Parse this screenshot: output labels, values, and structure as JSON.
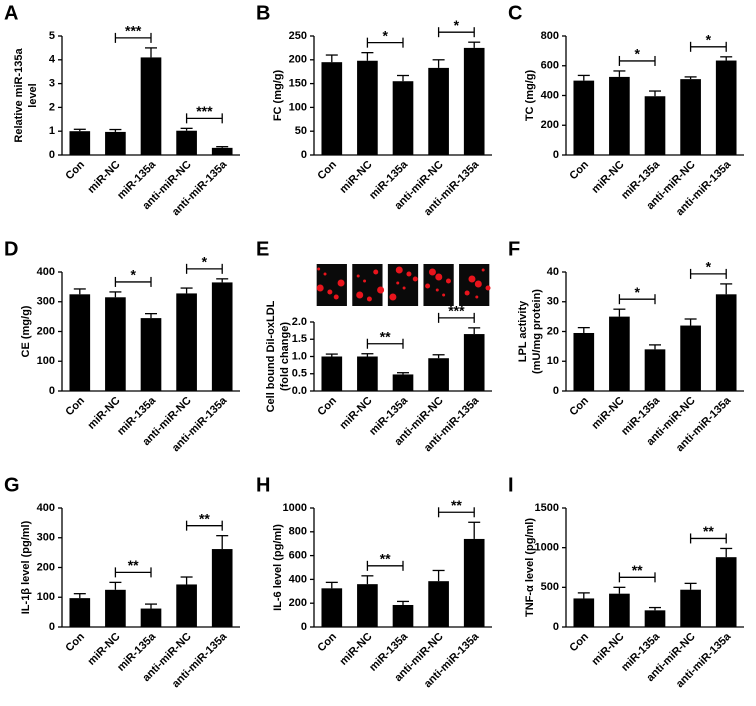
{
  "chart_data": [
    {
      "type": "bar",
      "panel": "A",
      "ylabel": [
        "Relative miR-135a",
        "level"
      ],
      "categories": [
        "Con",
        "miR-NC",
        "miR-135a",
        "anti-miR-NC",
        "anti-miR-135a"
      ],
      "values": [
        1.0,
        0.97,
        4.1,
        1.02,
        0.3
      ],
      "errors": [
        0.08,
        0.1,
        0.4,
        0.1,
        0.05
      ],
      "color": "#000000",
      "ylim": [
        0,
        5
      ],
      "yticks": [
        0,
        1,
        2,
        3,
        4,
        5
      ],
      "significance": [
        {
          "between": [
            "miR-NC",
            "miR-135a"
          ],
          "label": "***"
        },
        {
          "between": [
            "anti-miR-NC",
            "anti-miR-135a"
          ],
          "label": "***"
        }
      ]
    },
    {
      "type": "bar",
      "panel": "B",
      "ylabel": [
        "FC (mg/g)"
      ],
      "categories": [
        "Con",
        "miR-NC",
        "miR-135a",
        "anti-miR-NC",
        "anti-miR-135a"
      ],
      "values": [
        195,
        198,
        155,
        183,
        225
      ],
      "errors": [
        15,
        17,
        12,
        17,
        12
      ],
      "color": "#000000",
      "ylim": [
        0,
        250
      ],
      "yticks": [
        0,
        50,
        100,
        150,
        200,
        250
      ],
      "significance": [
        {
          "between": [
            "miR-NC",
            "miR-135a"
          ],
          "label": "*"
        },
        {
          "between": [
            "anti-miR-NC",
            "anti-miR-135a"
          ],
          "label": "*"
        }
      ]
    },
    {
      "type": "bar",
      "panel": "C",
      "ylabel": [
        "TC (mg/g)"
      ],
      "categories": [
        "Con",
        "miR-NC",
        "miR-135a",
        "anti-miR-NC",
        "anti-miR-135a"
      ],
      "values": [
        500,
        525,
        395,
        510,
        635
      ],
      "errors": [
        35,
        40,
        35,
        15,
        25
      ],
      "color": "#000000",
      "ylim": [
        0,
        800
      ],
      "yticks": [
        0,
        200,
        400,
        600,
        800
      ],
      "significance": [
        {
          "between": [
            "miR-NC",
            "miR-135a"
          ],
          "label": "*"
        },
        {
          "between": [
            "anti-miR-NC",
            "anti-miR-135a"
          ],
          "label": "*"
        }
      ]
    },
    {
      "type": "bar",
      "panel": "D",
      "ylabel": [
        "CE (mg/g)"
      ],
      "categories": [
        "Con",
        "miR-NC",
        "miR-135a",
        "anti-miR-NC",
        "anti-miR-135a"
      ],
      "values": [
        325,
        315,
        245,
        328,
        365
      ],
      "errors": [
        18,
        18,
        15,
        18,
        12
      ],
      "color": "#000000",
      "ylim": [
        0,
        400
      ],
      "yticks": [
        0,
        100,
        200,
        300,
        400
      ],
      "significance": [
        {
          "between": [
            "miR-NC",
            "miR-135a"
          ],
          "label": "*"
        },
        {
          "between": [
            "anti-miR-NC",
            "anti-miR-135a"
          ],
          "label": "*"
        }
      ]
    },
    {
      "type": "bar",
      "panel": "E",
      "images": true,
      "ylabel": [
        "Cell bound DiI-oxLDL",
        "(fold change)"
      ],
      "categories": [
        "Con",
        "miR-NC",
        "miR-135a",
        "anti-miR-NC",
        "anti-miR-135a"
      ],
      "values": [
        1.0,
        1.0,
        0.48,
        0.95,
        1.65
      ],
      "errors": [
        0.07,
        0.08,
        0.05,
        0.1,
        0.18
      ],
      "color": "#000000",
      "ylim": [
        0,
        2
      ],
      "yticks": [
        {
          "value": 0,
          "label": "0.0"
        },
        {
          "value": 0.5,
          "label": "0.5"
        },
        {
          "value": 1,
          "label": "1.0"
        },
        {
          "value": 1.5,
          "label": "1.5"
        },
        {
          "value": 2,
          "label": "2.0"
        }
      ],
      "significance": [
        {
          "between": [
            "miR-NC",
            "miR-135a"
          ],
          "label": "**"
        },
        {
          "between": [
            "anti-miR-NC",
            "anti-miR-135a"
          ],
          "label": "***"
        }
      ]
    },
    {
      "type": "bar",
      "panel": "F",
      "ylabel": [
        "LPL activity",
        "(mU/mg protein)"
      ],
      "categories": [
        "Con",
        "miR-NC",
        "miR-135a",
        "anti-miR-NC",
        "anti-miR-135a"
      ],
      "values": [
        19.5,
        25,
        14,
        22,
        32.5
      ],
      "errors": [
        1.8,
        2.5,
        1.5,
        2.2,
        3.5
      ],
      "color": "#000000",
      "ylim": [
        0,
        40
      ],
      "yticks": [
        0,
        10,
        20,
        30,
        40
      ],
      "significance": [
        {
          "between": [
            "miR-NC",
            "miR-135a"
          ],
          "label": "*"
        },
        {
          "between": [
            "anti-miR-NC",
            "anti-miR-135a"
          ],
          "label": "*"
        }
      ]
    },
    {
      "type": "bar",
      "panel": "G",
      "ylabel": [
        "IL-1β level (pg/ml)"
      ],
      "categories": [
        "Con",
        "miR-NC",
        "miR-135a",
        "anti-miR-NC",
        "anti-miR-135a"
      ],
      "values": [
        97,
        125,
        62,
        143,
        262
      ],
      "errors": [
        15,
        25,
        15,
        25,
        45
      ],
      "color": "#000000",
      "ylim": [
        0,
        400
      ],
      "yticks": [
        0,
        100,
        200,
        300,
        400
      ],
      "significance": [
        {
          "between": [
            "miR-NC",
            "miR-135a"
          ],
          "label": "**"
        },
        {
          "between": [
            "anti-miR-NC",
            "anti-miR-135a"
          ],
          "label": "**"
        }
      ]
    },
    {
      "type": "bar",
      "panel": "H",
      "ylabel": [
        "IL-6 level (pg/ml)"
      ],
      "categories": [
        "Con",
        "miR-NC",
        "miR-135a",
        "anti-miR-NC",
        "anti-miR-135a"
      ],
      "values": [
        325,
        360,
        185,
        385,
        740
      ],
      "errors": [
        50,
        70,
        30,
        90,
        140
      ],
      "color": "#000000",
      "ylim": [
        0,
        1000
      ],
      "yticks": [
        0,
        200,
        400,
        600,
        800,
        1000
      ],
      "significance": [
        {
          "between": [
            "miR-NC",
            "miR-135a"
          ],
          "label": "**"
        },
        {
          "between": [
            "anti-miR-NC",
            "anti-miR-135a"
          ],
          "label": "**"
        }
      ]
    },
    {
      "type": "bar",
      "panel": "I",
      "ylabel": [
        "TNF-α level (pg/ml)"
      ],
      "categories": [
        "Con",
        "miR-NC",
        "miR-135a",
        "anti-miR-NC",
        "anti-miR-135a"
      ],
      "values": [
        360,
        420,
        210,
        470,
        880
      ],
      "errors": [
        70,
        80,
        35,
        80,
        110
      ],
      "color": "#000000",
      "ylim": [
        0,
        1500
      ],
      "yticks": [
        0,
        500,
        1000,
        1500
      ],
      "significance": [
        {
          "between": [
            "miR-NC",
            "miR-135a"
          ],
          "label": "**"
        },
        {
          "between": [
            "anti-miR-NC",
            "anti-miR-135a"
          ],
          "label": "**"
        }
      ]
    }
  ]
}
